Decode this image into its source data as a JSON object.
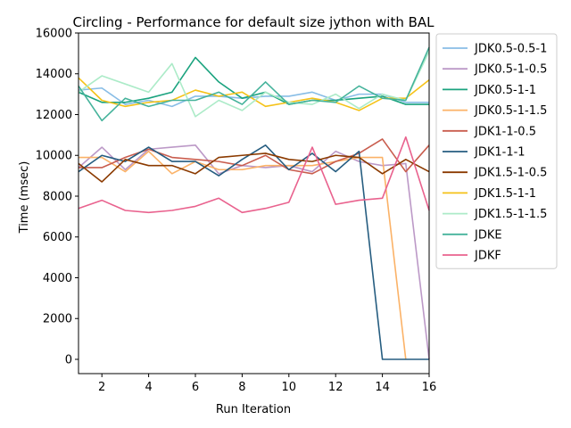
{
  "chart_data": {
    "type": "line",
    "title": "Circling - Performance for default size jython with BAL",
    "xlabel": "Run Iteration",
    "ylabel": "Time (msec)",
    "xlim": [
      1,
      16
    ],
    "ylim": [
      -700,
      16000
    ],
    "xticks": [
      2,
      4,
      6,
      8,
      10,
      12,
      14,
      16
    ],
    "yticks": [
      0,
      2000,
      4000,
      6000,
      8000,
      10000,
      12000,
      14000,
      16000
    ],
    "legend_position": "outside-right",
    "x": [
      1,
      2,
      3,
      4,
      5,
      6,
      7,
      8,
      9,
      10,
      11,
      12,
      13,
      14,
      15,
      16
    ],
    "series": [
      {
        "name": "JDK0.5-0.5-1",
        "color": "#88bde6",
        "values": [
          13200,
          13300,
          12500,
          12700,
          12400,
          12900,
          12900,
          12800,
          12900,
          12900,
          13100,
          12700,
          13000,
          13000,
          12600,
          12600
        ]
      },
      {
        "name": "JDK0.5-1-0.5",
        "color": "#bc99c7",
        "values": [
          9400,
          10400,
          9300,
          10300,
          10400,
          10500,
          9100,
          9500,
          9400,
          9500,
          9200,
          10200,
          9700,
          9500,
          9600,
          0
        ]
      },
      {
        "name": "JDK0.5-1-1",
        "color": "#1ba37f",
        "values": [
          13100,
          12600,
          12600,
          12800,
          13100,
          14800,
          13600,
          12800,
          13100,
          12500,
          12700,
          12700,
          12800,
          12900,
          12500,
          12500
        ]
      },
      {
        "name": "JDK0.5-1-1.5",
        "color": "#fbb267",
        "values": [
          9900,
          9900,
          9200,
          10200,
          9100,
          9700,
          9300,
          9300,
          9500,
          9500,
          9500,
          9700,
          9900,
          9900,
          0,
          null
        ]
      },
      {
        "name": "JDK1-1-0.5",
        "color": "#c95d4e",
        "values": [
          9400,
          9400,
          9900,
          10300,
          9900,
          9800,
          9700,
          9500,
          10000,
          9300,
          9100,
          9700,
          10100,
          10800,
          9200,
          10500
        ]
      },
      {
        "name": "JDK1-1-1",
        "color": "#265d80",
        "values": [
          9200,
          10000,
          9700,
          10400,
          9700,
          9700,
          9000,
          9800,
          10500,
          9300,
          10100,
          9200,
          10200,
          0,
          0,
          0
        ]
      },
      {
        "name": "JDK1.5-1-0.5",
        "color": "#8b3a00",
        "values": [
          9600,
          8700,
          9800,
          9500,
          9500,
          9100,
          9900,
          10000,
          10100,
          9800,
          9700,
          10000,
          9900,
          9100,
          9800,
          9200
        ]
      },
      {
        "name": "JDK1.5-1-1",
        "color": "#f5c218",
        "values": [
          13800,
          12700,
          12400,
          12600,
          12700,
          13200,
          12900,
          13100,
          12400,
          12600,
          12800,
          12600,
          12200,
          12800,
          12800,
          13700
        ]
      },
      {
        "name": "JDK1.5-1-1.5",
        "color": "#acebc8",
        "values": [
          13100,
          13900,
          13500,
          13100,
          14500,
          11900,
          12700,
          12200,
          13100,
          12600,
          12500,
          13000,
          12300,
          13000,
          12700,
          15100
        ]
      },
      {
        "name": "JDKE",
        "color": "#45b39b",
        "values": [
          13400,
          11700,
          12800,
          12400,
          12700,
          12700,
          13100,
          12500,
          13600,
          12500,
          12700,
          12600,
          13400,
          12800,
          12700,
          15300
        ]
      },
      {
        "name": "JDKF",
        "color": "#e9628e",
        "values": [
          7400,
          7800,
          7300,
          7200,
          7300,
          7500,
          7900,
          7200,
          7400,
          7700,
          10400,
          7600,
          7800,
          7900,
          10900,
          7300
        ]
      }
    ]
  }
}
